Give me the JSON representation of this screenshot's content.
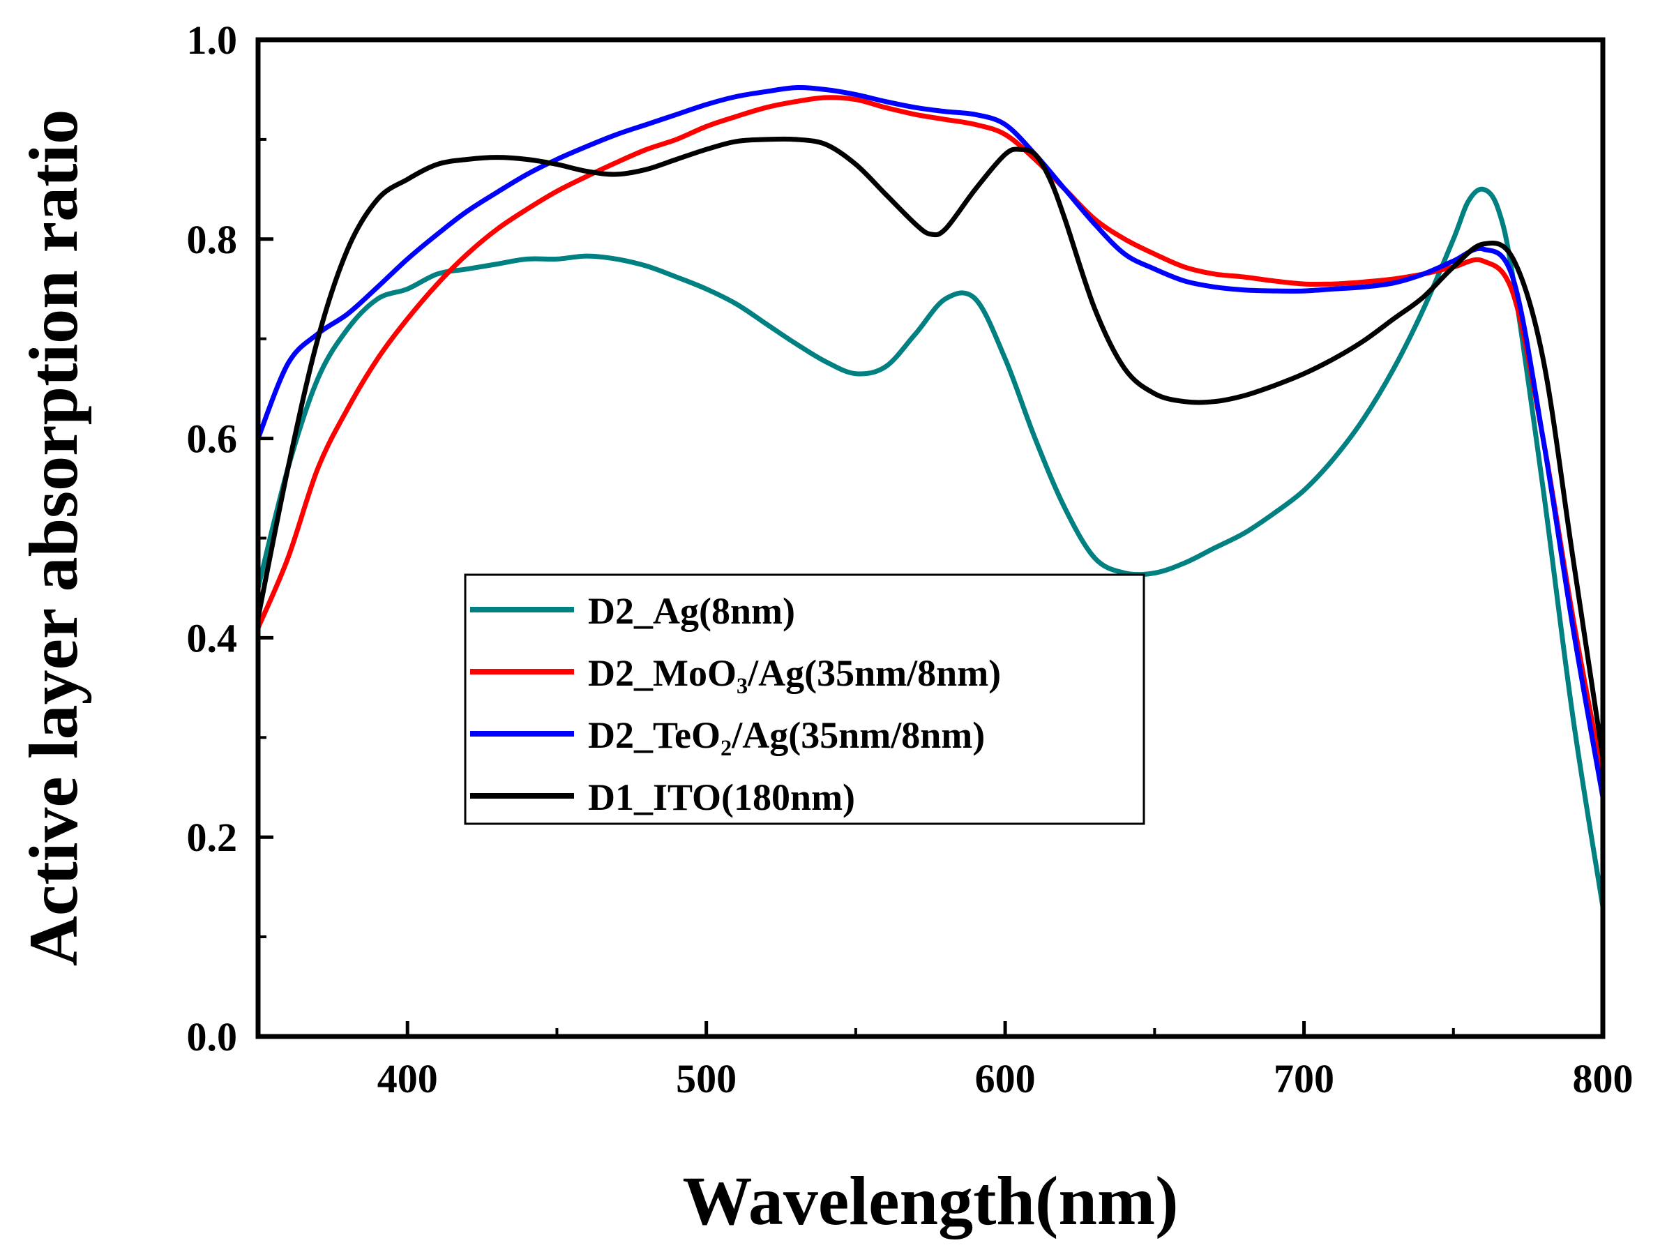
{
  "chart_data": {
    "type": "line",
    "title": "",
    "xlabel": "Wavelength(nm)",
    "ylabel": "Active layer absorption ratio",
    "xlim": [
      350,
      800
    ],
    "ylim": [
      0.0,
      1.0
    ],
    "xticks": [
      400,
      500,
      600,
      700,
      800
    ],
    "xtick_labels": [
      "400",
      "500",
      "600",
      "700",
      "800"
    ],
    "yticks": [
      0.0,
      0.2,
      0.4,
      0.6,
      0.8,
      1.0
    ],
    "ytick_labels": [
      "0.0",
      "0.2",
      "0.4",
      "0.6",
      "0.8",
      "1.0"
    ],
    "grid": false,
    "legend_position": "center-left",
    "series": [
      {
        "name": "D2_Ag(8nm)",
        "color": "#008080",
        "x": [
          350,
          360,
          370,
          380,
          390,
          400,
          410,
          420,
          430,
          440,
          450,
          460,
          470,
          480,
          490,
          500,
          510,
          520,
          530,
          540,
          550,
          560,
          570,
          580,
          590,
          600,
          610,
          620,
          630,
          640,
          650,
          660,
          670,
          680,
          690,
          700,
          710,
          720,
          730,
          740,
          750,
          755,
          760,
          765,
          770,
          780,
          790,
          800
        ],
        "y": [
          0.45,
          0.57,
          0.66,
          0.71,
          0.74,
          0.75,
          0.765,
          0.77,
          0.775,
          0.78,
          0.78,
          0.783,
          0.78,
          0.773,
          0.762,
          0.75,
          0.735,
          0.715,
          0.695,
          0.677,
          0.665,
          0.672,
          0.705,
          0.74,
          0.74,
          0.68,
          0.6,
          0.53,
          0.48,
          0.465,
          0.465,
          0.475,
          0.49,
          0.505,
          0.525,
          0.548,
          0.58,
          0.62,
          0.67,
          0.73,
          0.8,
          0.838,
          0.85,
          0.83,
          0.76,
          0.55,
          0.32,
          0.13
        ]
      },
      {
        "name": "D2_MoO₃/Ag(35nm/8nm)",
        "color": "#ff0000",
        "x": [
          350,
          360,
          370,
          380,
          390,
          400,
          410,
          420,
          430,
          440,
          450,
          460,
          470,
          480,
          490,
          500,
          510,
          520,
          530,
          540,
          550,
          560,
          570,
          580,
          590,
          600,
          610,
          620,
          630,
          640,
          650,
          660,
          670,
          680,
          690,
          700,
          710,
          720,
          730,
          740,
          750,
          760,
          770,
          780,
          790,
          800
        ],
        "y": [
          0.41,
          0.48,
          0.57,
          0.63,
          0.68,
          0.72,
          0.755,
          0.785,
          0.81,
          0.83,
          0.848,
          0.863,
          0.877,
          0.89,
          0.9,
          0.913,
          0.923,
          0.932,
          0.938,
          0.942,
          0.94,
          0.932,
          0.925,
          0.92,
          0.915,
          0.905,
          0.88,
          0.85,
          0.82,
          0.8,
          0.785,
          0.772,
          0.765,
          0.762,
          0.758,
          0.755,
          0.755,
          0.757,
          0.76,
          0.765,
          0.772,
          0.778,
          0.745,
          0.6,
          0.42,
          0.26
        ]
      },
      {
        "name": "D2_TeO₂/Ag(35nm/8nm)",
        "color": "#0000ff",
        "x": [
          350,
          360,
          370,
          380,
          390,
          400,
          410,
          420,
          430,
          440,
          450,
          460,
          470,
          480,
          490,
          500,
          510,
          520,
          530,
          540,
          550,
          560,
          570,
          580,
          590,
          600,
          610,
          620,
          630,
          640,
          650,
          660,
          670,
          680,
          690,
          700,
          710,
          720,
          730,
          740,
          750,
          760,
          770,
          780,
          790,
          800
        ],
        "y": [
          0.6,
          0.675,
          0.705,
          0.725,
          0.752,
          0.78,
          0.805,
          0.828,
          0.847,
          0.865,
          0.88,
          0.893,
          0.905,
          0.915,
          0.925,
          0.935,
          0.943,
          0.948,
          0.952,
          0.95,
          0.945,
          0.938,
          0.932,
          0.928,
          0.925,
          0.915,
          0.885,
          0.85,
          0.815,
          0.785,
          0.77,
          0.758,
          0.752,
          0.749,
          0.748,
          0.748,
          0.75,
          0.752,
          0.756,
          0.765,
          0.778,
          0.79,
          0.76,
          0.6,
          0.41,
          0.24
        ]
      },
      {
        "name": "D1_ITO(180nm)",
        "color": "#000000",
        "x": [
          350,
          360,
          370,
          380,
          390,
          400,
          410,
          420,
          430,
          440,
          450,
          460,
          470,
          480,
          490,
          500,
          510,
          520,
          530,
          540,
          550,
          560,
          570,
          575,
          580,
          590,
          600,
          605,
          610,
          615,
          620,
          630,
          640,
          650,
          660,
          670,
          680,
          690,
          700,
          710,
          720,
          730,
          740,
          750,
          760,
          770,
          780,
          790,
          800
        ],
        "y": [
          0.42,
          0.57,
          0.7,
          0.79,
          0.84,
          0.86,
          0.875,
          0.88,
          0.882,
          0.88,
          0.875,
          0.868,
          0.865,
          0.87,
          0.88,
          0.89,
          0.898,
          0.9,
          0.9,
          0.895,
          0.875,
          0.845,
          0.815,
          0.805,
          0.81,
          0.85,
          0.885,
          0.89,
          0.885,
          0.86,
          0.82,
          0.73,
          0.67,
          0.645,
          0.637,
          0.637,
          0.643,
          0.653,
          0.665,
          0.68,
          0.698,
          0.72,
          0.742,
          0.772,
          0.795,
          0.78,
          0.68,
          0.48,
          0.28
        ]
      }
    ]
  }
}
